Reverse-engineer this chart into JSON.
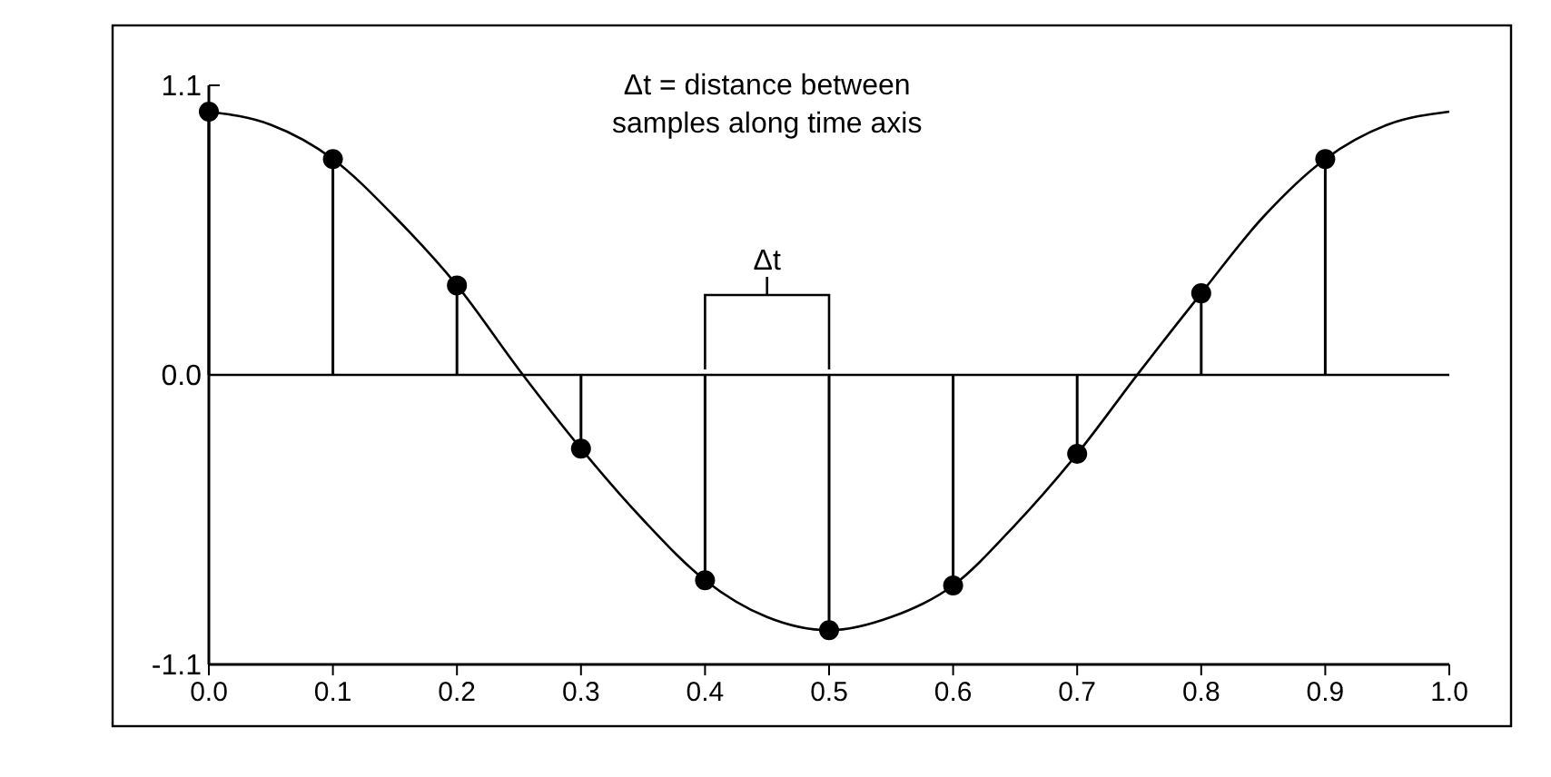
{
  "chart_data": {
    "type": "line",
    "xlim": [
      0,
      1
    ],
    "ylim": [
      -1.1,
      1.1
    ],
    "xticks": [
      {
        "value": 0,
        "label": "0.0"
      },
      0.1,
      0.2,
      0.3,
      0.4,
      0.5,
      0.6,
      0.7,
      0.8,
      0.9,
      {
        "value": 1,
        "label": "1.0"
      }
    ],
    "yticks": [
      -1.1,
      {
        "value": 0,
        "label": "0.0"
      },
      1.1
    ],
    "ref_lines": [
      {
        "axis": "y",
        "value": 0
      }
    ],
    "series": [
      {
        "color": "#000000",
        "marker": "none",
        "x": [
          0,
          0.05,
          0.1,
          0.15,
          0.2,
          0.25,
          0.3,
          0.35,
          0.4,
          0.45,
          0.5,
          0.55,
          0.6,
          0.65,
          0.7,
          0.75,
          0.8,
          0.85,
          0.9,
          0.95,
          1
        ],
        "values": [
          1.0,
          0.95,
          0.82,
          0.6,
          0.34,
          0.02,
          -0.28,
          -0.55,
          -0.78,
          -0.92,
          -0.97,
          -0.92,
          -0.8,
          -0.57,
          -0.3,
          0.01,
          0.31,
          0.6,
          0.82,
          0.95,
          1.0
        ]
      },
      {
        "type": "lollipop",
        "color": "#000000",
        "marker": "circle",
        "x": [
          0,
          0.1,
          0.2,
          0.3,
          0.4,
          0.5,
          0.6,
          0.7,
          0.8,
          0.9
        ],
        "values": [
          1.0,
          0.82,
          0.34,
          -0.28,
          -0.78,
          -0.97,
          -0.8,
          -0.3,
          0.31,
          0.82
        ]
      }
    ],
    "annotations": [
      "Δt = distance between\nsamples along time axis",
      "Δt"
    ]
  }
}
